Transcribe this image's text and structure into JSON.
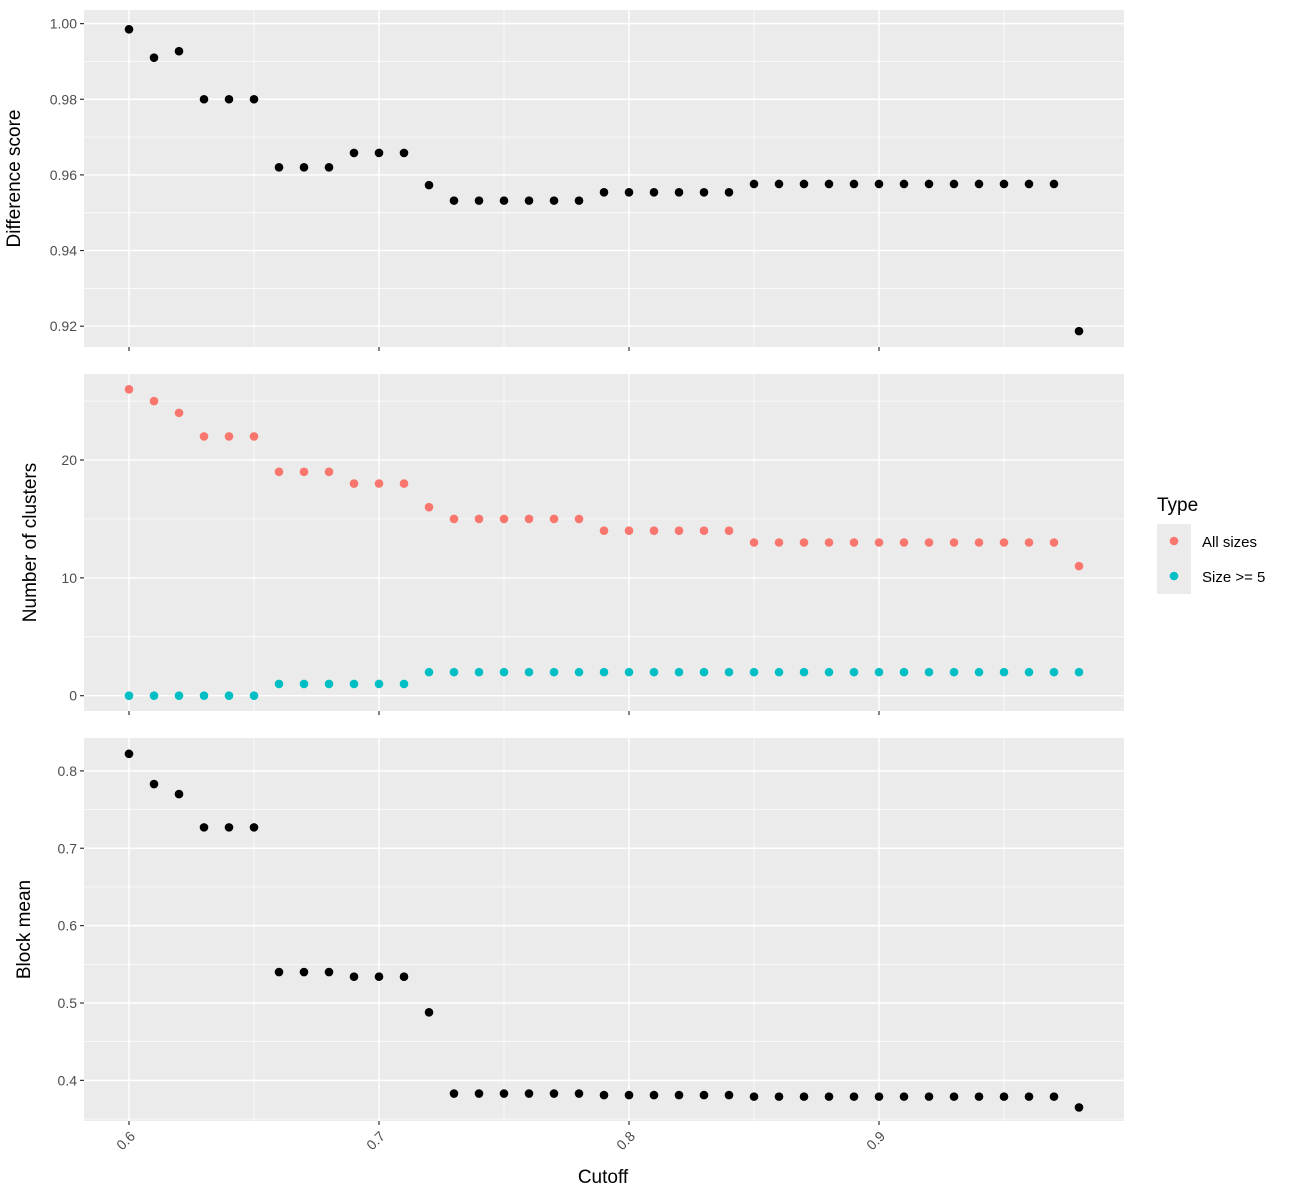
{
  "chart_data": {
    "type": "scatter",
    "xlabel": "Cutoff",
    "x_ticks": [
      0.6,
      0.7,
      0.8,
      0.9
    ],
    "x_tick_labels": [
      "0.6",
      "0.7",
      "0.8",
      "0.9"
    ],
    "xlim": [
      0.582,
      0.998
    ],
    "x": [
      0.6,
      0.61,
      0.62,
      0.63,
      0.64,
      0.65,
      0.66,
      0.67,
      0.68,
      0.69,
      0.7,
      0.71,
      0.72,
      0.73,
      0.74,
      0.75,
      0.76,
      0.77,
      0.78,
      0.79,
      0.8,
      0.81,
      0.82,
      0.83,
      0.84,
      0.85,
      0.86,
      0.87,
      0.88,
      0.89,
      0.9,
      0.91,
      0.92,
      0.93,
      0.94,
      0.95,
      0.96,
      0.97,
      0.98
    ],
    "panel_background": "#ebebeb",
    "grid": true,
    "legend_position": "right",
    "panels": [
      {
        "ylabel": "Difference score",
        "ylim": [
          0.9145,
          1.0036
        ],
        "y_ticks": [
          0.92,
          0.94,
          0.96,
          0.98,
          1.0
        ],
        "y_tick_labels": [
          "0.92",
          "0.94",
          "0.96",
          "0.98",
          "1.00"
        ],
        "series": [
          {
            "color": "#000000",
            "values": [
              0.9985,
              0.991,
              0.9927,
              0.98,
              0.98,
              0.98,
              0.962,
              0.962,
              0.962,
              0.9658,
              0.9658,
              0.9658,
              0.9573,
              0.9532,
              0.9532,
              0.9532,
              0.9532,
              0.9532,
              0.9532,
              0.9554,
              0.9554,
              0.9554,
              0.9554,
              0.9554,
              0.9554,
              0.9576,
              0.9576,
              0.9576,
              0.9576,
              0.9576,
              0.9576,
              0.9576,
              0.9576,
              0.9576,
              0.9576,
              0.9576,
              0.9576,
              0.9576,
              0.9187
            ]
          }
        ]
      },
      {
        "ylabel": "Number of clusters",
        "ylim": [
          -1.3,
          27.3
        ],
        "y_ticks": [
          0,
          10,
          20
        ],
        "y_tick_labels": [
          "0",
          "10",
          "20"
        ],
        "series": [
          {
            "name": "All sizes",
            "color": "#F8766D",
            "values": [
              26,
              25,
              24,
              22,
              22,
              22,
              19,
              19,
              19,
              18,
              18,
              18,
              16,
              15,
              15,
              15,
              15,
              15,
              15,
              14,
              14,
              14,
              14,
              14,
              14,
              13,
              13,
              13,
              13,
              13,
              13,
              13,
              13,
              13,
              13,
              13,
              13,
              13,
              11
            ]
          },
          {
            "name": "Size >= 5",
            "color": "#00BFC4",
            "values": [
              0,
              0,
              0,
              0,
              0,
              0,
              1,
              1,
              1,
              1,
              1,
              1,
              2,
              2,
              2,
              2,
              2,
              2,
              2,
              2,
              2,
              2,
              2,
              2,
              2,
              2,
              2,
              2,
              2,
              2,
              2,
              2,
              2,
              2,
              2,
              2,
              2,
              2,
              2
            ]
          }
        ]
      },
      {
        "ylabel": "Block mean",
        "ylim": [
          0.3475,
          0.8425
        ],
        "y_ticks": [
          0.4,
          0.5,
          0.6,
          0.7,
          0.8
        ],
        "y_tick_labels": [
          "0.4",
          "0.5",
          "0.6",
          "0.7",
          "0.8"
        ],
        "series": [
          {
            "color": "#000000",
            "values": [
              0.822,
              0.783,
              0.77,
              0.727,
              0.727,
              0.727,
              0.54,
              0.54,
              0.54,
              0.534,
              0.534,
              0.534,
              0.488,
              0.383,
              0.383,
              0.383,
              0.383,
              0.383,
              0.383,
              0.381,
              0.381,
              0.381,
              0.381,
              0.381,
              0.381,
              0.379,
              0.379,
              0.379,
              0.379,
              0.379,
              0.379,
              0.379,
              0.379,
              0.379,
              0.379,
              0.379,
              0.379,
              0.379,
              0.365
            ]
          }
        ]
      }
    ],
    "legend": {
      "title": "Type",
      "items": [
        {
          "label": "All sizes",
          "color": "#F8766D"
        },
        {
          "label": "Size >= 5",
          "color": "#00BFC4"
        }
      ]
    }
  }
}
